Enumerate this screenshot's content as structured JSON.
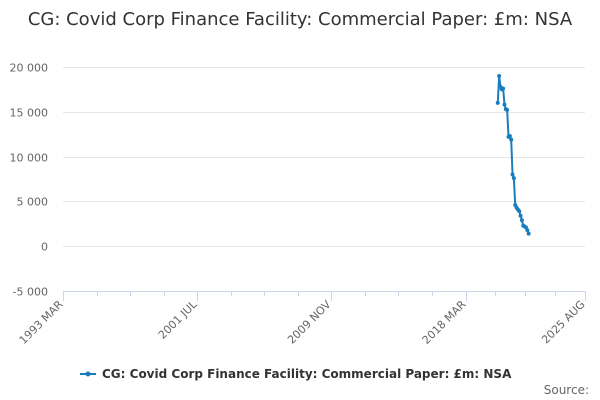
{
  "chart_data": {
    "type": "line",
    "title": "CG: Covid Corp Finance Facility: Commercial Paper: £m: NSA",
    "xlabel": "",
    "ylabel": "",
    "ylim": [
      -5000,
      20000
    ],
    "yticks": [
      -5000,
      0,
      5000,
      10000,
      15000,
      20000
    ],
    "ytick_labels": [
      "-5 000",
      "0",
      "5 000",
      "10 000",
      "15 000",
      "20 000"
    ],
    "xlim": [
      "1993-03",
      "2025-08"
    ],
    "xticks": [
      "1993-03",
      "2001-07",
      "2009-11",
      "2018-03",
      "2025-08"
    ],
    "xtick_labels": [
      "1993 MAR",
      "2001 JUL",
      "2009 NOV",
      "2018 MAR",
      "2025 AUG"
    ],
    "grid": "horizontal",
    "legend_position": "bottom",
    "color": "#1a7dbd",
    "series": [
      {
        "name": "CG: Covid Corp Finance Facility: Commercial Paper: £m: NSA",
        "x": [
          "2020-03",
          "2020-04",
          "2020-05",
          "2020-06",
          "2020-07",
          "2020-08",
          "2020-09",
          "2020-10",
          "2020-11",
          "2020-12",
          "2021-01",
          "2021-02",
          "2021-03",
          "2021-04",
          "2021-05",
          "2021-06",
          "2021-07",
          "2021-08",
          "2021-09",
          "2021-10",
          "2021-11",
          "2021-12",
          "2022-01",
          "2022-02"
        ],
        "values": [
          16000,
          19000,
          17800,
          17500,
          17600,
          15800,
          15300,
          15200,
          12200,
          12300,
          11900,
          8000,
          7600,
          4600,
          4300,
          4100,
          3900,
          3400,
          2900,
          2300,
          2200,
          2100,
          1800,
          1400
        ]
      }
    ]
  },
  "legend": {
    "label": "CG: Covid Corp Finance Facility: Commercial Paper: £m: NSA"
  },
  "footer": {
    "source": "Source:"
  }
}
